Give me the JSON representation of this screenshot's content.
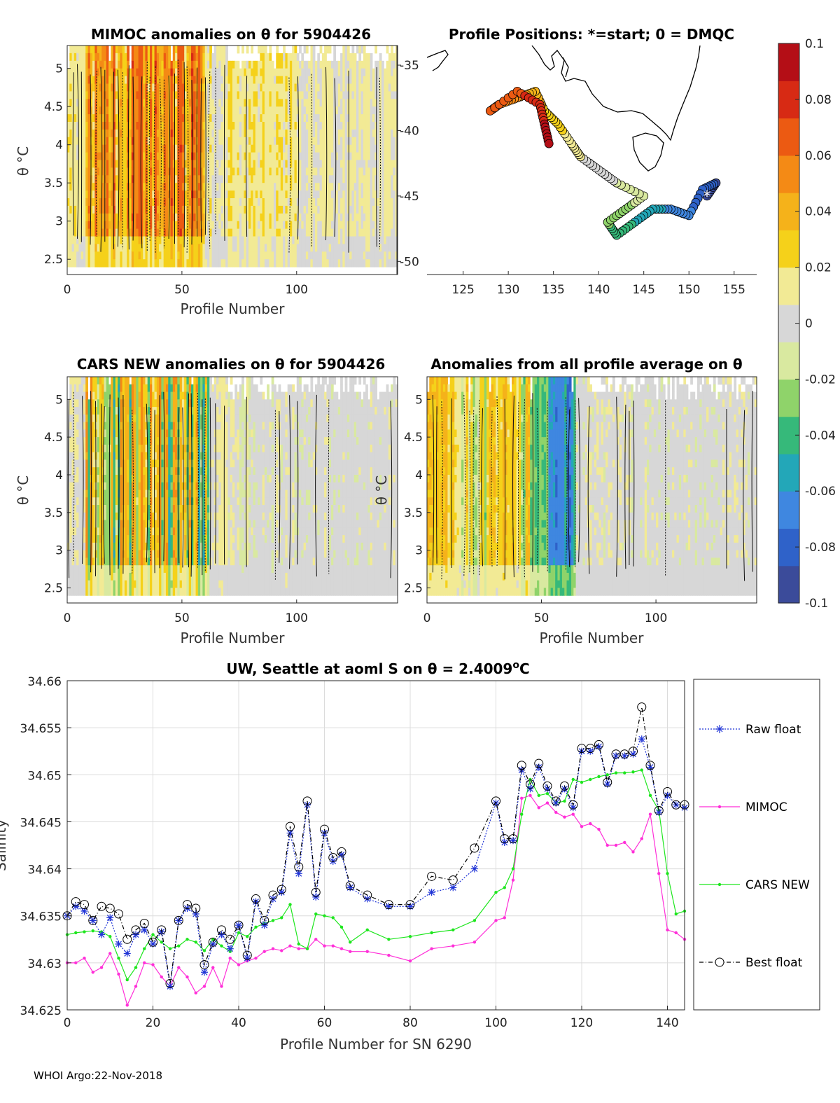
{
  "footer": "WHOI Argo:22-Nov-2018",
  "colorbar": {
    "ticks": [
      "0.1",
      "0.08",
      "0.06",
      "0.04",
      "0.02",
      "0",
      "-0.02",
      "-0.04",
      "-0.06",
      "-0.08",
      "-0.1"
    ],
    "colors": [
      "#3b4b9a",
      "#2f62c9",
      "#3f87e0",
      "#23a7b8",
      "#36b97a",
      "#8fd36a",
      "#d9e9a0",
      "#d7d7d7",
      "#f2ea95",
      "#f5d11a",
      "#f5b21a",
      "#f48a15",
      "#ec5a12",
      "#d72a14",
      "#b40e16"
    ]
  },
  "panels": {
    "mimoc": {
      "title": "MIMOC anomalies on θ  for 5904426",
      "ylabel": "θ °C",
      "xlabel": "Profile Number",
      "xticks": [
        "0",
        "50",
        "100"
      ],
      "yticks": [
        "5",
        "4.5",
        "4",
        "3.5",
        "3",
        "2.5"
      ],
      "xlim": [
        0,
        144
      ],
      "ylim": [
        2.3,
        5.3
      ]
    },
    "map": {
      "title": "Profile Positions: *=start; 0 = DMQC",
      "xticks": [
        "125",
        "130",
        "135",
        "140",
        "145",
        "150",
        "155"
      ],
      "yticks": [
        "-35",
        "-40",
        "-45",
        "-50"
      ],
      "xlim": [
        121,
        157.5
      ],
      "ylim": [
        -51,
        -33.5
      ]
    },
    "cars": {
      "title": "CARS NEW anomalies on θ for 5904426",
      "ylabel": "θ °C",
      "xlabel": "Profile Number",
      "xticks": [
        "0",
        "50",
        "100"
      ],
      "yticks": [
        "5",
        "4.5",
        "4",
        "3.5",
        "3",
        "2.5"
      ],
      "xlim": [
        0,
        144
      ],
      "ylim": [
        2.3,
        5.3
      ]
    },
    "avg": {
      "title": "Anomalies from all profile average on θ",
      "ylabel": "θ °C",
      "xlabel": "Profile Number",
      "xticks": [
        "0",
        "50",
        "100"
      ],
      "yticks": [
        "5",
        "4.5",
        "4",
        "3.5",
        "3",
        "2.5"
      ],
      "xlim": [
        0,
        144
      ],
      "ylim": [
        2.3,
        5.3
      ]
    }
  },
  "chart_data": {
    "type": "line",
    "title": "UW, Seattle at aoml S on θ = 2.4009",
    "title_sup": "o",
    "title_unit": "C",
    "xlabel": "Profile Number for SN 6290",
    "ylabel": "Salinity",
    "xlim": [
      0,
      144
    ],
    "ylim": [
      34.625,
      34.66
    ],
    "xticks": [
      0,
      20,
      40,
      60,
      80,
      100,
      120,
      140
    ],
    "yticks": [
      "34.66",
      "34.655",
      "34.65",
      "34.645",
      "34.64",
      "34.635",
      "34.63",
      "34.625"
    ],
    "grid": true,
    "legend": [
      "Raw float",
      "MIMOC",
      "CARS NEW",
      "Best float"
    ],
    "x": [
      0,
      2,
      4,
      6,
      8,
      10,
      12,
      14,
      16,
      18,
      20,
      22,
      24,
      26,
      28,
      30,
      32,
      34,
      36,
      38,
      40,
      42,
      44,
      46,
      48,
      50,
      52,
      54,
      56,
      58,
      60,
      62,
      64,
      66,
      70,
      75,
      80,
      85,
      90,
      95,
      100,
      102,
      104,
      106,
      108,
      110,
      112,
      114,
      116,
      118,
      120,
      122,
      124,
      126,
      128,
      130,
      132,
      134,
      136,
      138,
      140,
      142,
      144
    ],
    "series": [
      {
        "name": "Raw float",
        "values": [
          34.635,
          34.636,
          34.6355,
          34.6345,
          34.633,
          34.6348,
          34.632,
          34.631,
          34.633,
          34.6335,
          34.632,
          34.6333,
          34.6275,
          34.6345,
          34.6358,
          34.6352,
          34.629,
          34.632,
          34.633,
          34.6315,
          34.634,
          34.6305,
          34.6365,
          34.634,
          34.6368,
          34.6375,
          34.6438,
          34.6395,
          34.6468,
          34.637,
          34.6438,
          34.6408,
          34.6415,
          34.638,
          34.6368,
          34.636,
          34.636,
          34.6375,
          34.638,
          34.64,
          34.647,
          34.6428,
          34.643,
          34.6505,
          34.6485,
          34.6508,
          34.6485,
          34.647,
          34.6485,
          34.6465,
          34.6525,
          34.6525,
          34.653,
          34.649,
          34.652,
          34.652,
          34.6522,
          34.6538,
          34.6508,
          34.646,
          34.6478,
          34.6468,
          34.6465
        ]
      },
      {
        "name": "MIMOC",
        "values": [
          34.63,
          34.63,
          34.6305,
          34.629,
          34.6295,
          34.631,
          34.6288,
          34.6255,
          34.6275,
          34.63,
          34.6298,
          34.6285,
          34.6275,
          34.6295,
          34.6285,
          34.6268,
          34.6275,
          34.6295,
          34.6275,
          34.6305,
          34.6298,
          34.6302,
          34.6305,
          34.6312,
          34.6315,
          34.6313,
          34.6318,
          34.6315,
          34.6315,
          34.6325,
          34.6318,
          34.6318,
          34.6315,
          34.6312,
          34.6312,
          34.6308,
          34.6302,
          34.6315,
          34.6318,
          34.6322,
          34.6345,
          34.6348,
          34.6388,
          34.6475,
          34.6478,
          34.6465,
          34.647,
          34.646,
          34.6455,
          34.6458,
          34.6445,
          34.6448,
          34.6442,
          34.6425,
          34.6425,
          34.6428,
          34.6418,
          34.6432,
          34.6458,
          34.6395,
          34.6335,
          34.6332,
          34.6325
        ]
      },
      {
        "name": "CARS NEW",
        "values": [
          34.633,
          34.6332,
          34.6333,
          34.6334,
          34.6333,
          34.6328,
          34.6305,
          34.6282,
          34.6295,
          34.6315,
          34.633,
          34.6322,
          34.6315,
          34.6318,
          34.6325,
          34.6322,
          34.6313,
          34.6325,
          34.6318,
          34.6312,
          34.6332,
          34.6328,
          34.6338,
          34.6342,
          34.6345,
          34.6348,
          34.6362,
          34.632,
          34.6315,
          34.6352,
          34.635,
          34.6348,
          34.6338,
          34.6322,
          34.6335,
          34.6325,
          34.6328,
          34.6332,
          34.6335,
          34.6345,
          34.6375,
          34.638,
          34.64,
          34.6458,
          34.6495,
          34.6478,
          34.648,
          34.647,
          34.6472,
          34.6495,
          34.6492,
          34.6495,
          34.6498,
          34.65,
          34.6502,
          34.6502,
          34.6503,
          34.6505,
          34.6478,
          34.6462,
          34.6395,
          34.6352,
          34.6355
        ]
      },
      {
        "name": "Best float",
        "values": [
          34.635,
          34.6365,
          34.6362,
          34.6345,
          34.636,
          34.6358,
          34.6352,
          34.6325,
          34.6335,
          34.6342,
          34.6322,
          34.6335,
          34.6278,
          34.6345,
          34.6362,
          34.6358,
          34.6298,
          34.6322,
          34.6335,
          34.6325,
          34.634,
          34.6308,
          34.6368,
          34.6345,
          34.6372,
          34.6378,
          34.6445,
          34.6402,
          34.6472,
          34.6375,
          34.6442,
          34.6412,
          34.6418,
          34.6382,
          34.6372,
          34.6362,
          34.6362,
          34.6392,
          34.6388,
          34.6422,
          34.6472,
          34.6432,
          34.6432,
          34.651,
          34.649,
          34.6512,
          34.6488,
          34.6472,
          34.6488,
          34.6468,
          34.6528,
          34.6528,
          34.6532,
          34.6492,
          34.6522,
          34.6522,
          34.6525,
          34.6572,
          34.651,
          34.6462,
          34.6482,
          34.6468,
          34.6468
        ]
      }
    ],
    "colors": {
      "raw": "#1f33d6",
      "mimoc": "#ff2fd8",
      "cars": "#1de61d",
      "best": "#000000"
    }
  }
}
